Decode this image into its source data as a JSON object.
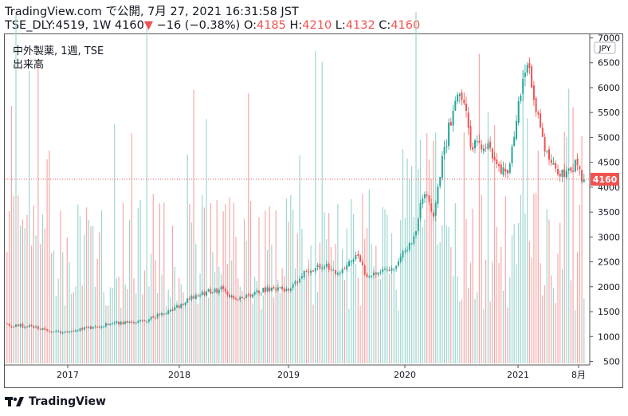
{
  "header": {
    "line1": "TradingView.com で公開, 7月 27, 2021 16:31:58 JST",
    "symbol": "TSE_DLY:4519, 1W 4160",
    "change_arrow": "▼",
    "change": " −16 (−0.38%) ",
    "o_label": "O:",
    "o_value": "4185",
    "h_label": " H:",
    "h_value": "4210",
    "l_label": " L:",
    "l_value": "4132",
    "c_label": " C:",
    "c_value": "4160"
  },
  "legend": {
    "title": "中外製薬, 1週, TSE",
    "volume_label": "出来高"
  },
  "axis": {
    "currency_badge": "JPY",
    "price_ticks": [
      7000,
      6500,
      6000,
      5500,
      5000,
      4500,
      4000,
      3500,
      3000,
      2500,
      2000,
      1500,
      1000,
      500
    ],
    "x_ticks": [
      "2017",
      "2018",
      "2019",
      "2020",
      "2021",
      "8月"
    ],
    "last_price_label": "4160"
  },
  "colors": {
    "up": "#26a69a",
    "down": "#ef5350",
    "vol_up": "#9ed6d0",
    "vol_down": "#f5a9a7"
  },
  "logo": {
    "text": "TradingView",
    "icon": "tradingview-logo-icon"
  },
  "chart_data": {
    "type": "candlestick",
    "title": "中外製薬, 1週, TSE",
    "currency": "JPY",
    "ylim": [
      500,
      7000
    ],
    "x_range": [
      "2016-06",
      "2021-08"
    ],
    "last_close": 4160,
    "price_path": [
      [
        "2016-06",
        1250
      ],
      [
        "2016-09",
        1200
      ],
      [
        "2016-12",
        1080
      ],
      [
        "2017-03",
        1160
      ],
      [
        "2017-06",
        1270
      ],
      [
        "2017-09",
        1310
      ],
      [
        "2017-12",
        1500
      ],
      [
        "2018-03",
        1850
      ],
      [
        "2018-06",
        1970
      ],
      [
        "2018-07",
        1730
      ],
      [
        "2018-10",
        1920
      ],
      [
        "2018-12",
        2000
      ],
      [
        "2019-01",
        1900
      ],
      [
        "2019-03",
        2350
      ],
      [
        "2019-05",
        2450
      ],
      [
        "2019-06",
        2200
      ],
      [
        "2019-08",
        2650
      ],
      [
        "2019-09",
        2250
      ],
      [
        "2019-12",
        2420
      ],
      [
        "2020-02",
        3000
      ],
      [
        "2020-03",
        4000
      ],
      [
        "2020-04",
        3300
      ],
      [
        "2020-05",
        4600
      ],
      [
        "2020-06",
        5450
      ],
      [
        "2020-07",
        5900
      ],
      [
        "2020-08",
        4900
      ],
      [
        "2020-10",
        4750
      ],
      [
        "2020-12",
        4150
      ],
      [
        "2021-01",
        5600
      ],
      [
        "2021-02",
        6450
      ],
      [
        "2021-03",
        5500
      ],
      [
        "2021-04",
        4650
      ],
      [
        "2021-05",
        4300
      ],
      [
        "2021-06",
        4200
      ],
      [
        "2021-07",
        4450
      ],
      [
        "2021-08",
        4160
      ]
    ],
    "volume_axis_note": "volume bars share the lower region of the price axis"
  }
}
